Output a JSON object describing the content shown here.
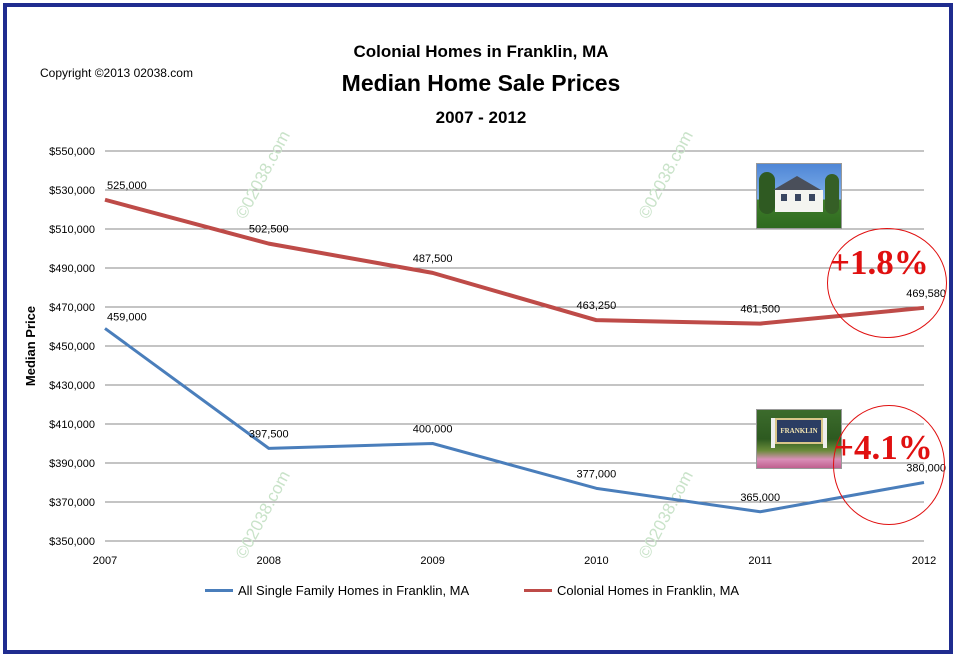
{
  "copyright": "Copyright ©2013 02038.com",
  "title_line1": "Colonial Homes in Franklin, MA",
  "title_line2": "Median Home Sale Prices",
  "title_line3": "2007 - 2012",
  "watermark": "©02038.com",
  "badges": {
    "colonial_change": "+1.8%",
    "all_change": "+4.1%"
  },
  "images": {
    "house_icon": "house-photo-icon",
    "sign_icon": "franklin-sign-photo-icon",
    "sign_text": "FRANKLIN"
  },
  "chart_data": {
    "type": "line",
    "x": [
      "2007",
      "2008",
      "2009",
      "2010",
      "2011",
      "2012"
    ],
    "ylabel": "Median Price",
    "ylim": [
      350000,
      550000
    ],
    "ytick_labels": [
      "$350,000",
      "$370,000",
      "$390,000",
      "$410,000",
      "$430,000",
      "$450,000",
      "$470,000",
      "$490,000",
      "$510,000",
      "$530,000",
      "$550,000"
    ],
    "grid": true,
    "legend": "bottom",
    "series": [
      {
        "name": "All Single Family Homes in Franklin, MA",
        "color": "#4a7ebb",
        "values": [
          459000,
          397500,
          400000,
          377000,
          365000,
          380000
        ],
        "labels": [
          "459,000",
          "397,500",
          "400,000",
          "377,000",
          "365,000",
          "380,000"
        ]
      },
      {
        "name": "Colonial Homes in Franklin, MA",
        "color": "#be4b48",
        "values": [
          525000,
          502500,
          487500,
          463250,
          461500,
          469580
        ],
        "labels": [
          "525,000",
          "502,500",
          "487,500",
          "463,250",
          "461,500",
          "469,580"
        ]
      }
    ]
  }
}
